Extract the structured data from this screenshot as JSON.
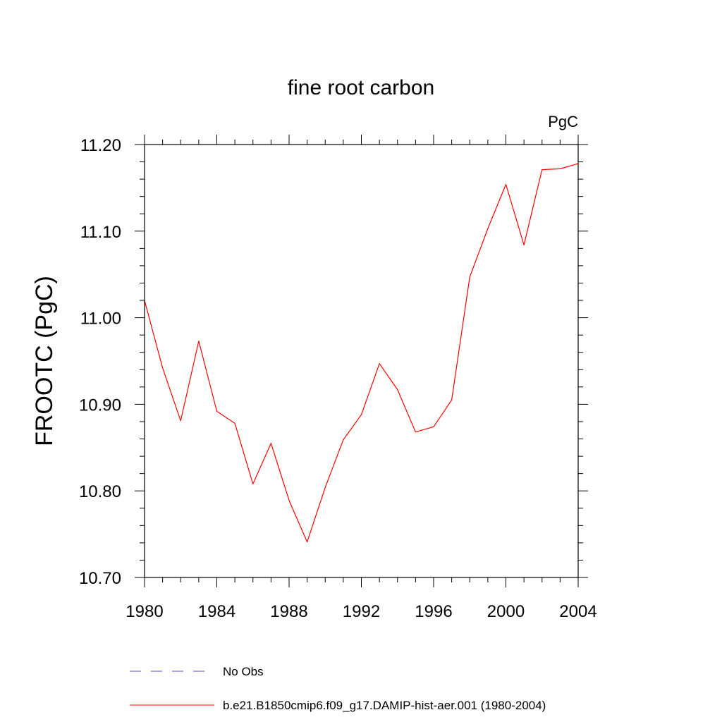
{
  "chart_data": {
    "type": "line",
    "title": "fine root carbon",
    "units_label": "PgC",
    "ylabel": "FROOTC  (PgC)",
    "xlabel": "",
    "xlim": [
      1980,
      2004
    ],
    "ylim": [
      10.7,
      11.2
    ],
    "x_ticks": [
      1980,
      1984,
      1988,
      1992,
      1996,
      2000,
      2004
    ],
    "x_tick_labels": [
      "1980",
      "1984",
      "1988",
      "1992",
      "1996",
      "2000",
      "2004"
    ],
    "y_ticks": [
      10.7,
      10.8,
      10.9,
      11.0,
      11.1,
      11.2
    ],
    "y_tick_labels": [
      "10.70",
      "10.80",
      "10.90",
      "11.00",
      "11.10",
      "11.20"
    ],
    "grid": false,
    "legend_position": "bottom",
    "x": [
      1980,
      1981,
      1982,
      1983,
      1984,
      1985,
      1986,
      1987,
      1988,
      1989,
      1990,
      1991,
      1992,
      1993,
      1994,
      1995,
      1996,
      1997,
      1998,
      1999,
      2000,
      2001,
      2002,
      2003,
      2004
    ],
    "series": [
      {
        "name": "b.e21.B1850cmip6.f09_g17.DAMIP-hist-aer.001 (1980-2004)",
        "color": "#ff0000",
        "style": "solid",
        "values": [
          11.02,
          10.942,
          10.881,
          10.973,
          10.892,
          10.878,
          10.808,
          10.855,
          10.789,
          10.741,
          10.804,
          10.859,
          10.888,
          10.947,
          10.917,
          10.868,
          10.874,
          10.905,
          11.047,
          11.103,
          11.154,
          11.084,
          11.171,
          11.172,
          11.178
        ]
      }
    ],
    "legend": [
      {
        "label": "No Obs",
        "color": "#5050c8",
        "style": "dashed"
      },
      {
        "label": "b.e21.B1850cmip6.f09_g17.DAMIP-hist-aer.001 (1980-2004)",
        "color": "#ff0000",
        "style": "solid"
      }
    ]
  }
}
